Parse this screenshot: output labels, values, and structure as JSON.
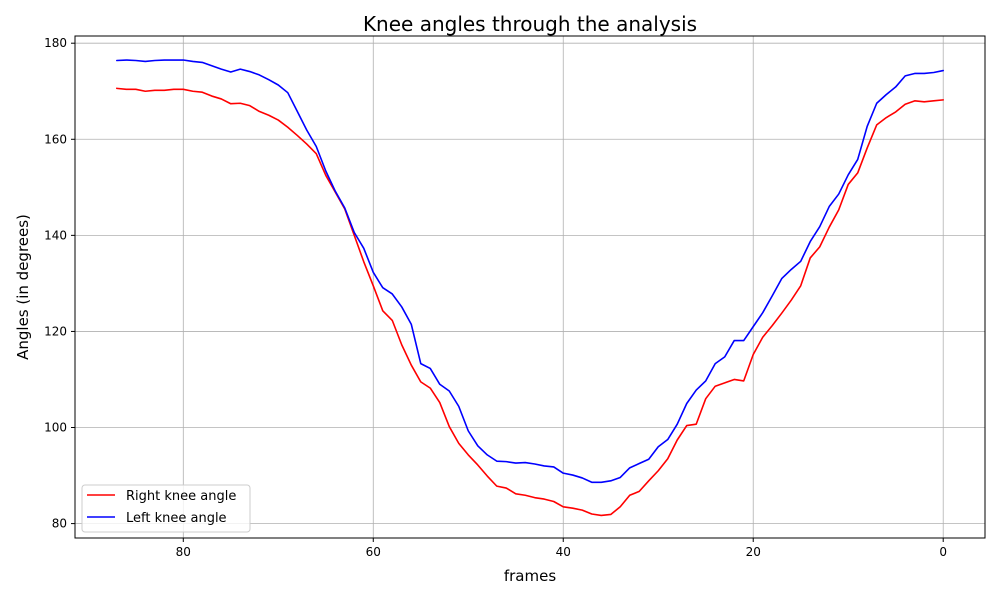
{
  "chart_data": {
    "type": "line",
    "title": "Knee angles through the analysis",
    "xlabel": "frames",
    "ylabel": "Angles (in degrees)",
    "xlim": [
      91.4,
      -4.4
    ],
    "ylim": [
      77,
      181.5
    ],
    "x_inverted": true,
    "xticks": [
      80,
      60,
      40,
      20,
      0
    ],
    "yticks": [
      80,
      100,
      120,
      140,
      160,
      180
    ],
    "grid": true,
    "legend_position": "lower-left",
    "x": [
      87,
      86,
      85,
      84,
      83,
      82,
      81,
      80,
      79,
      78,
      77,
      76,
      75,
      74,
      73,
      72,
      71,
      70,
      69,
      68,
      67,
      66,
      65,
      64,
      63,
      62,
      61,
      60,
      59,
      58,
      57,
      56,
      55,
      54,
      53,
      52,
      51,
      50,
      49,
      48,
      47,
      46,
      45,
      44,
      43,
      42,
      41,
      40,
      39,
      38,
      37,
      36,
      35,
      34,
      33,
      32,
      31,
      30,
      29,
      28,
      27,
      26,
      25,
      24,
      23,
      22,
      21,
      20,
      19,
      18,
      17,
      16,
      15,
      14,
      13,
      12,
      11,
      10,
      9,
      8,
      7,
      6,
      5,
      4,
      3,
      2,
      1,
      0
    ],
    "series": [
      {
        "name": "Right knee angle",
        "color": "#ff0000",
        "values": [
          170.6,
          170.4,
          170.4,
          170.0,
          170.2,
          170.2,
          170.4,
          170.4,
          170.0,
          169.8,
          169.0,
          168.4,
          167.4,
          167.5,
          167.0,
          165.8,
          165.0,
          164.0,
          162.5,
          160.8,
          159.0,
          157.0,
          152.5,
          149.0,
          145.5,
          140.0,
          134.5,
          129.5,
          124.3,
          122.3,
          117.2,
          113.0,
          109.5,
          108.2,
          105.2,
          100.2,
          96.7,
          94.3,
          92.2,
          89.9,
          87.8,
          87.4,
          86.2,
          85.9,
          85.4,
          85.1,
          84.6,
          83.5,
          83.2,
          82.8,
          82.0,
          81.7,
          81.9,
          83.5,
          85.9,
          86.7,
          88.9,
          91.0,
          93.5,
          97.4,
          100.4,
          100.7,
          106.0,
          108.6,
          109.3,
          110.0,
          109.7,
          115.2,
          118.8,
          121.2,
          123.8,
          126.5,
          129.5,
          135.3,
          137.6,
          141.7,
          145.3,
          150.6,
          153.0,
          158.2,
          163.0,
          164.5,
          165.7,
          167.3,
          168.0,
          167.8,
          168.0,
          168.2
        ]
      },
      {
        "name": "Left knee angle",
        "color": "#0000ff",
        "values": [
          176.4,
          176.5,
          176.4,
          176.2,
          176.4,
          176.5,
          176.5,
          176.5,
          176.2,
          176.0,
          175.3,
          174.6,
          174.0,
          174.6,
          174.1,
          173.4,
          172.4,
          171.3,
          169.7,
          165.8,
          161.9,
          158.5,
          153.4,
          149.2,
          145.7,
          140.6,
          137.3,
          132.3,
          129.1,
          127.8,
          125.1,
          121.5,
          113.3,
          112.3,
          109.0,
          107.6,
          104.4,
          99.3,
          96.2,
          94.3,
          93.0,
          92.9,
          92.6,
          92.7,
          92.4,
          92.0,
          91.8,
          90.5,
          90.1,
          89.5,
          88.6,
          88.6,
          88.9,
          89.6,
          91.6,
          92.5,
          93.4,
          96.0,
          97.5,
          100.7,
          105.0,
          107.8,
          109.7,
          113.3,
          114.7,
          118.1,
          118.1,
          121.0,
          123.9,
          127.4,
          131.0,
          132.9,
          134.6,
          138.7,
          141.8,
          146.0,
          148.6,
          152.6,
          155.8,
          162.7,
          167.5,
          169.3,
          170.9,
          173.2,
          173.7,
          173.7,
          173.9,
          174.3
        ]
      }
    ]
  }
}
